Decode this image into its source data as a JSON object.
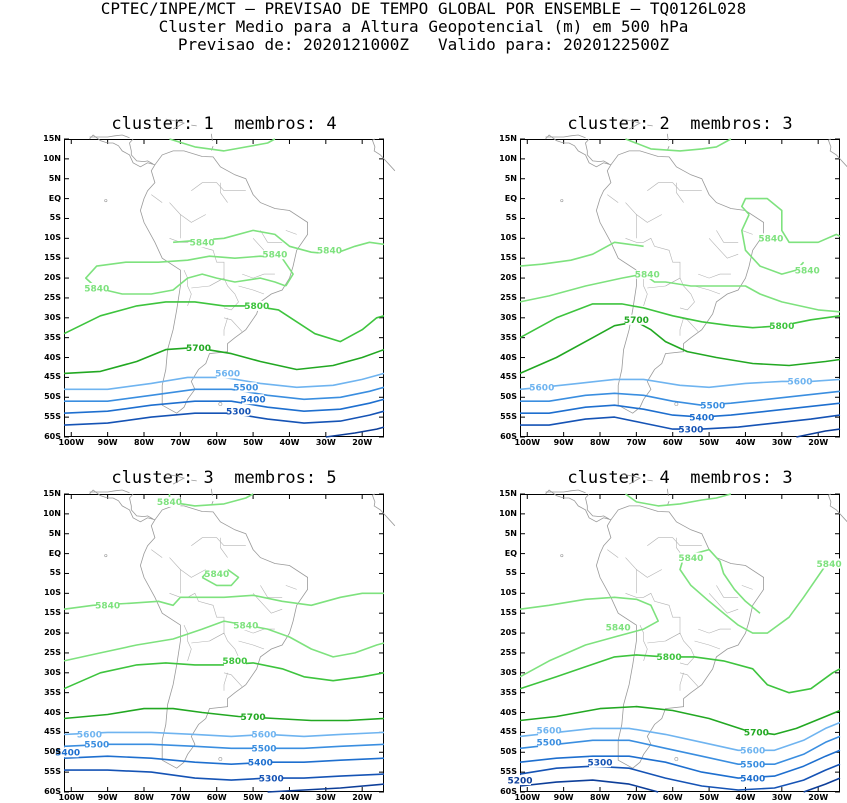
{
  "header": {
    "line1": "CPTEC/INPE/MCT – PREVISAO DE TEMPO GLOBAL POR ENSEMBLE – TQ0126L028",
    "line2": "Cluster Medio para a Altura Geopotencial (m) em 500 hPa",
    "line3": "Previsao de: 2020121000Z   Valido para: 2020122500Z"
  },
  "lat_labels": [
    "15N",
    "10N",
    "5N",
    "EQ",
    "5S",
    "10S",
    "15S",
    "20S",
    "25S",
    "30S",
    "35S",
    "40S",
    "45S",
    "50S",
    "55S",
    "60S"
  ],
  "lon_labels": [
    "100W",
    "90W",
    "80W",
    "70W",
    "60W",
    "50W",
    "40W",
    "30W",
    "20W"
  ],
  "colors": {
    "c5840": "#7ee27e",
    "c5800": "#3ec43e",
    "c5700": "#22a822",
    "c5600": "#6fb4f0",
    "c5500": "#3a8ee0",
    "c5400": "#1e6fcf",
    "c5300": "#1553b5",
    "c5200": "#0d3e99",
    "coast": "#9a9a9a"
  },
  "panels": [
    {
      "title": "cluster: 1  membros: 4",
      "contour_labels": [
        {
          "text": "5840",
          "level": "5840",
          "lon": -64,
          "lat": -11
        },
        {
          "text": "5840",
          "level": "5840",
          "lon": -44,
          "lat": -14
        },
        {
          "text": "5840",
          "level": "5840",
          "lon": -29,
          "lat": -13
        },
        {
          "text": "5840",
          "level": "5840",
          "lon": -93,
          "lat": -22.5
        },
        {
          "text": "5800",
          "level": "5800",
          "lon": -49,
          "lat": -27
        },
        {
          "text": "5700",
          "level": "5700",
          "lon": -65,
          "lat": -37.5
        },
        {
          "text": "5600",
          "level": "5600",
          "lon": -57,
          "lat": -44
        },
        {
          "text": "5500",
          "level": "5500",
          "lon": -52,
          "lat": -47.5
        },
        {
          "text": "5400",
          "level": "5400",
          "lon": -50,
          "lat": -50.5
        },
        {
          "text": "5300",
          "level": "5300",
          "lon": -54,
          "lat": -53.5
        }
      ]
    },
    {
      "title": "cluster: 2  membros: 3",
      "contour_labels": [
        {
          "text": "5840",
          "level": "5840",
          "lon": -33,
          "lat": -10
        },
        {
          "text": "5840",
          "level": "5840",
          "lon": -67,
          "lat": -19
        },
        {
          "text": "5840",
          "level": "5840",
          "lon": -23,
          "lat": -18
        },
        {
          "text": "5800",
          "level": "5800",
          "lon": -30,
          "lat": -32
        },
        {
          "text": "5700",
          "level": "5700",
          "lon": -70,
          "lat": -30.5
        },
        {
          "text": "5600",
          "level": "5600",
          "lon": -96,
          "lat": -47.5
        },
        {
          "text": "5600",
          "level": "5600",
          "lon": -25,
          "lat": -46
        },
        {
          "text": "5500",
          "level": "5500",
          "lon": -49,
          "lat": -52
        },
        {
          "text": "5400",
          "level": "5400",
          "lon": -52,
          "lat": -55
        },
        {
          "text": "5300",
          "level": "5300",
          "lon": -55,
          "lat": -58
        }
      ]
    },
    {
      "title": "cluster: 3  membros: 5",
      "contour_labels": [
        {
          "text": "5840",
          "level": "5840",
          "lon": -73,
          "lat": 13
        },
        {
          "text": "5840",
          "level": "5840",
          "lon": -90,
          "lat": -13
        },
        {
          "text": "5840",
          "level": "5840",
          "lon": -60,
          "lat": -5
        },
        {
          "text": "5840",
          "level": "5840",
          "lon": -52,
          "lat": -18
        },
        {
          "text": "5800",
          "level": "5800",
          "lon": -55,
          "lat": -27
        },
        {
          "text": "5700",
          "level": "5700",
          "lon": -50,
          "lat": -41
        },
        {
          "text": "5600",
          "level": "5600",
          "lon": -95,
          "lat": -45.5
        },
        {
          "text": "5600",
          "level": "5600",
          "lon": -47,
          "lat": -45.5
        },
        {
          "text": "5500",
          "level": "5500",
          "lon": -93,
          "lat": -48
        },
        {
          "text": "5500",
          "level": "5500",
          "lon": -47,
          "lat": -49
        },
        {
          "text": "5400",
          "level": "5400",
          "lon": -48,
          "lat": -52.5
        },
        {
          "text": "5400",
          "level": "5400",
          "lon": -101,
          "lat": -50
        },
        {
          "text": "5300",
          "level": "5300",
          "lon": -45,
          "lat": -56.5
        }
      ]
    },
    {
      "title": "cluster: 4  membros: 3",
      "contour_labels": [
        {
          "text": "5840",
          "level": "5840",
          "lon": -55,
          "lat": -1
        },
        {
          "text": "5840",
          "level": "5840",
          "lon": -17,
          "lat": -2.5
        },
        {
          "text": "5840",
          "level": "5840",
          "lon": -75,
          "lat": -18.5
        },
        {
          "text": "5800",
          "level": "5800",
          "lon": -61,
          "lat": -26
        },
        {
          "text": "5700",
          "level": "5700",
          "lon": -37,
          "lat": -45
        },
        {
          "text": "5600",
          "level": "5600",
          "lon": -94,
          "lat": -44.5
        },
        {
          "text": "5600",
          "level": "5600",
          "lon": -38,
          "lat": -49.5
        },
        {
          "text": "5500",
          "level": "5500",
          "lon": -94,
          "lat": -47.5
        },
        {
          "text": "5500",
          "level": "5500",
          "lon": -38,
          "lat": -53
        },
        {
          "text": "5400",
          "level": "5400",
          "lon": -38,
          "lat": -56.5
        },
        {
          "text": "5300",
          "level": "5300",
          "lon": -80,
          "lat": -52.5
        },
        {
          "text": "5200",
          "level": "5200",
          "lon": -102,
          "lat": -57
        }
      ]
    }
  ]
}
